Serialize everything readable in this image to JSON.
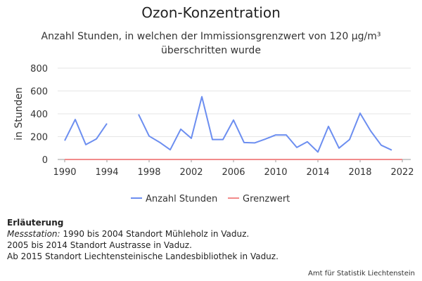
{
  "chart_data": {
    "type": "line",
    "title": "Ozon-Konzentration",
    "subtitle": "Anzahl Stunden, in welchen der Immissionsgrenzwert von 120 µg/m³ überschritten wurde",
    "ylabel": "in Stunden",
    "xlabel": "",
    "xlim": [
      1990,
      2022
    ],
    "ylim": [
      0,
      800
    ],
    "x_ticks": [
      "1990",
      "1994",
      "1998",
      "2002",
      "2006",
      "2010",
      "2014",
      "2018",
      "2022"
    ],
    "y_ticks": [
      "0",
      "200",
      "400",
      "600",
      "800"
    ],
    "grid": "horizontal",
    "legend_position": "bottom",
    "x": [
      1990,
      1991,
      1992,
      1993,
      1994,
      1995,
      1996,
      1997,
      1998,
      1999,
      2000,
      2001,
      2002,
      2003,
      2004,
      2005,
      2006,
      2007,
      2008,
      2009,
      2010,
      2011,
      2012,
      2013,
      2014,
      2015,
      2016,
      2017,
      2018,
      2019,
      2020,
      2021,
      2022
    ],
    "series": [
      {
        "name": "Anzahl Stunden",
        "color": "#6c8ef0",
        "values": [
          165,
          350,
          130,
          180,
          315,
          null,
          null,
          395,
          205,
          150,
          85,
          265,
          185,
          550,
          175,
          175,
          345,
          148,
          145,
          178,
          215,
          215,
          105,
          155,
          65,
          290,
          100,
          175,
          405,
          250,
          125,
          82,
          null
        ]
      },
      {
        "name": "Grenzwert",
        "color": "#f28b8b",
        "values": [
          0,
          0,
          0,
          0,
          0,
          0,
          0,
          0,
          0,
          0,
          0,
          0,
          0,
          0,
          0,
          0,
          0,
          0,
          0,
          0,
          0,
          0,
          0,
          0,
          0,
          0,
          0,
          0,
          0,
          0,
          0,
          0,
          0
        ]
      }
    ]
  },
  "notes": {
    "heading": "Erläuterung",
    "line1_label": "Messstation:",
    "line1_text": " 1990 bis 2004 Standort Mühleholz in Vaduz.",
    "line2": "2005 bis 2014 Standort Austrasse in Vaduz.",
    "line3": "Ab 2015 Standort Liechtensteinische Landesbibliothek in Vaduz."
  },
  "credits": "Amt für Statistik Liechtenstein"
}
